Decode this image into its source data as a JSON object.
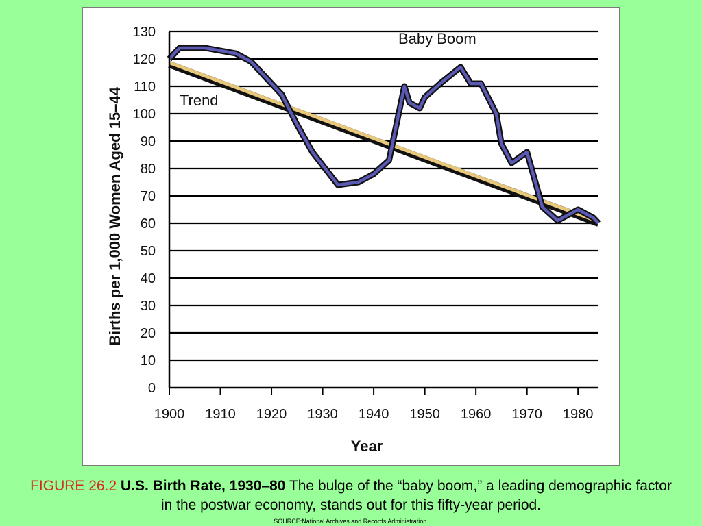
{
  "caption": {
    "label": "FIGURE 26.2",
    "title": "U.S. Birth Rate, 1930–80",
    "text": "The bulge of the “baby boom,” a leading demographic factor in the postwar economy, stands out for this fifty-year period."
  },
  "source": "SOURCE:National Archives and Records Administration.",
  "colors": {
    "background": "#99ff99",
    "series_line": "#5a5ab4",
    "series_outline": "#111111",
    "trend_line": "#e8c87a",
    "trend_outline": "#111111",
    "caption_label": "#d62a1f"
  },
  "chart_data": {
    "type": "line",
    "title": "",
    "xlabel": "Year",
    "ylabel": "Births per 1,000 Women Aged 15–44",
    "xlim": [
      1900,
      1984
    ],
    "ylim": [
      0,
      130
    ],
    "x_ticks": [
      1900,
      1910,
      1920,
      1930,
      1940,
      1950,
      1960,
      1970,
      1980
    ],
    "y_ticks": [
      0,
      10,
      20,
      30,
      40,
      50,
      60,
      70,
      80,
      90,
      100,
      110,
      120,
      130
    ],
    "grid": "horizontal",
    "annotations": [
      {
        "text": "Baby Boom",
        "x": 1955,
        "y": 125
      },
      {
        "text": "Trend",
        "x": 1902,
        "y": 104
      }
    ],
    "series": [
      {
        "name": "Baby Boom",
        "x": [
          1900,
          1902,
          1907,
          1913,
          1916,
          1919,
          1922,
          1925,
          1928,
          1933,
          1937,
          1940,
          1943,
          1946,
          1947,
          1949,
          1950,
          1953,
          1957,
          1959,
          1961,
          1964,
          1965,
          1967,
          1970,
          1973,
          1976,
          1980,
          1983,
          1984
        ],
        "y": [
          120,
          124,
          124,
          122,
          119,
          113,
          107,
          96,
          86,
          74,
          75,
          78,
          83,
          110,
          104,
          102,
          106,
          111,
          117,
          111,
          111,
          100,
          89,
          82,
          86,
          66,
          61,
          65,
          62,
          60
        ]
      },
      {
        "name": "Trend",
        "x": [
          1900,
          1984
        ],
        "y": [
          118,
          60
        ]
      }
    ]
  }
}
